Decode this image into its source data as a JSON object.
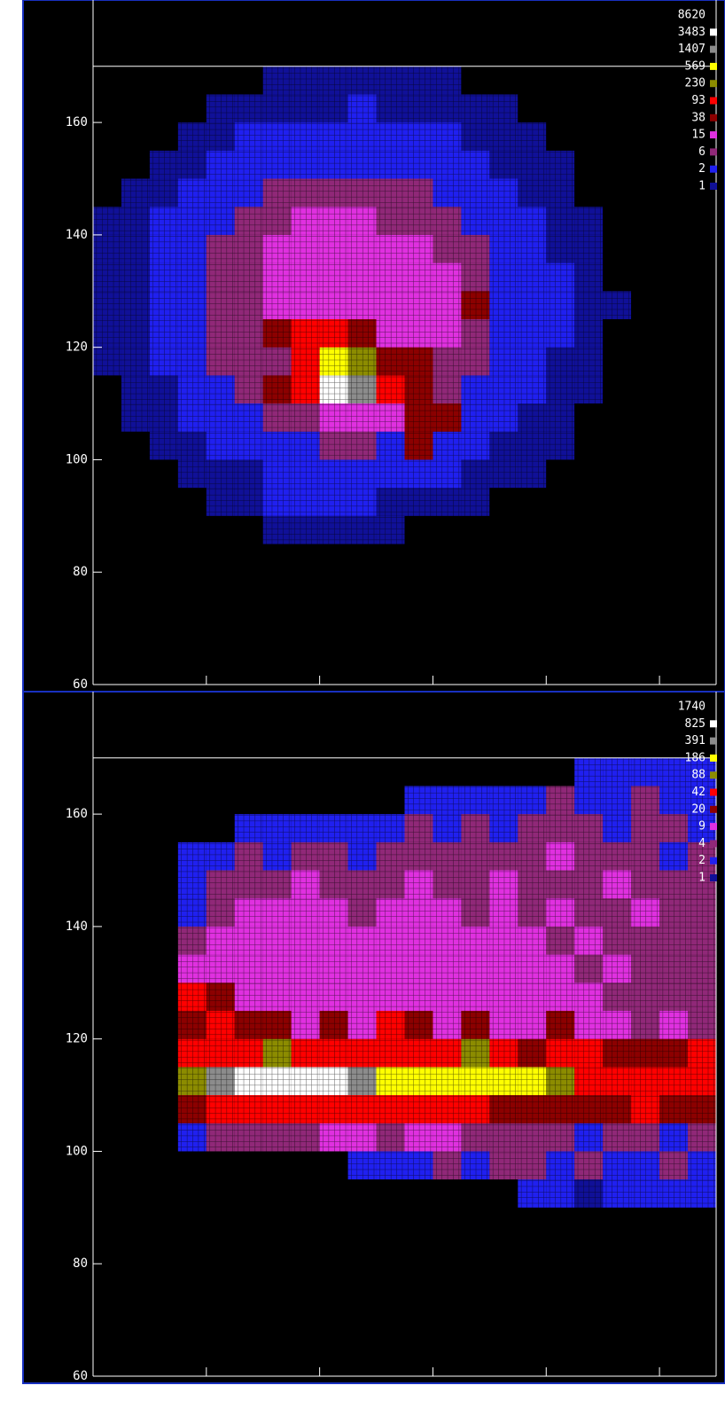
{
  "chart_data": [
    {
      "type": "heatmap",
      "xlim": [
        60,
        170
      ],
      "ylim": [
        60,
        181
      ],
      "xticks": [
        60,
        80,
        100,
        120,
        140,
        160
      ],
      "yticks": [
        60,
        80,
        100,
        120,
        140,
        160
      ],
      "reference_line": 170,
      "xbins": [
        60,
        65,
        70,
        75,
        80,
        85,
        90,
        95,
        100,
        105,
        110,
        115,
        120,
        125,
        130,
        135,
        140,
        145,
        150,
        155,
        160,
        165,
        170
      ],
      "ybins": [
        85,
        90,
        95,
        100,
        105,
        110,
        115,
        120,
        125,
        130,
        135,
        140,
        145,
        150,
        155,
        160,
        165,
        170
      ],
      "levels": [
        8620,
        3483,
        1407,
        569,
        230,
        93,
        38,
        15,
        6,
        2,
        1
      ],
      "colors": [
        "#ffffff",
        "#8c8c8c",
        "#ffff00",
        "#8c8c00",
        "#ff0000",
        "#8c0000",
        "#e030e0",
        "#902878",
        "#2020f0",
        "#101098"
      ],
      "z": [
        [
          0,
          0,
          0,
          0,
          0,
          0,
          1,
          1,
          1,
          1,
          1,
          0,
          0,
          0,
          0,
          0,
          0,
          0,
          0,
          0,
          0,
          0
        ],
        [
          0,
          0,
          0,
          0,
          1,
          1,
          2,
          2,
          2,
          2,
          1,
          1,
          1,
          1,
          0,
          0,
          0,
          0,
          0,
          0,
          0,
          0
        ],
        [
          0,
          0,
          0,
          1,
          1,
          1,
          3,
          3,
          2,
          3,
          3,
          3,
          3,
          1,
          1,
          1,
          0,
          0,
          0,
          0,
          0,
          0
        ],
        [
          0,
          0,
          1,
          1,
          3,
          3,
          3,
          3,
          8,
          8,
          3,
          40,
          3,
          3,
          1,
          1,
          1,
          0,
          0,
          0,
          0,
          0
        ],
        [
          0,
          1,
          1,
          3,
          3,
          3,
          8,
          8,
          20,
          15,
          30,
          60,
          45,
          3,
          3,
          1,
          1,
          0,
          0,
          0,
          0,
          0
        ],
        [
          0,
          1,
          1,
          3,
          3,
          8,
          40,
          200,
          8620,
          1500,
          100,
          70,
          8,
          3,
          3,
          3,
          1,
          1,
          0,
          0,
          0,
          0
        ],
        [
          1,
          1,
          3,
          3,
          8,
          8,
          8,
          100,
          600,
          250,
          60,
          40,
          8,
          8,
          3,
          3,
          1,
          1,
          0,
          0,
          0,
          0
        ],
        [
          1,
          1,
          3,
          3,
          8,
          8,
          50,
          100,
          120,
          60,
          18,
          18,
          18,
          8,
          3,
          3,
          3,
          1,
          0,
          0,
          0,
          0
        ],
        [
          1,
          1,
          3,
          3,
          8,
          8,
          18,
          18,
          18,
          18,
          18,
          18,
          18,
          40,
          3,
          3,
          3,
          1,
          1,
          0,
          0,
          0
        ],
        [
          1,
          1,
          3,
          3,
          8,
          8,
          18,
          18,
          18,
          18,
          18,
          18,
          18,
          8,
          3,
          3,
          3,
          1,
          0,
          0,
          0,
          0
        ],
        [
          1,
          1,
          3,
          3,
          8,
          8,
          18,
          18,
          18,
          18,
          18,
          18,
          8,
          8,
          3,
          3,
          1,
          1,
          0,
          0,
          0,
          0
        ],
        [
          1,
          1,
          3,
          3,
          3,
          8,
          8,
          18,
          18,
          18,
          8,
          8,
          8,
          3,
          3,
          3,
          1,
          1,
          0,
          0,
          0,
          0
        ],
        [
          0,
          1,
          1,
          3,
          3,
          3,
          8,
          8,
          8,
          8,
          8,
          8,
          3,
          3,
          3,
          1,
          1,
          0,
          0,
          0,
          0,
          0
        ],
        [
          0,
          0,
          1,
          1,
          3,
          3,
          3,
          3,
          3,
          3,
          3,
          3,
          3,
          3,
          1,
          1,
          1,
          0,
          0,
          0,
          0,
          0
        ],
        [
          0,
          0,
          0,
          1,
          1,
          3,
          3,
          3,
          3,
          3,
          3,
          3,
          3,
          1,
          1,
          1,
          0,
          0,
          0,
          0,
          0,
          0
        ],
        [
          0,
          0,
          0,
          0,
          1,
          1,
          1,
          1,
          1,
          2,
          1,
          1,
          1,
          1,
          1,
          0,
          0,
          0,
          0,
          0,
          0,
          0
        ],
        [
          0,
          0,
          0,
          0,
          0,
          0,
          1,
          1,
          1,
          1,
          1,
          1,
          1,
          0,
          0,
          0,
          0,
          0,
          0,
          0,
          0,
          0
        ]
      ]
    },
    {
      "type": "heatmap",
      "xlim": [
        60,
        170
      ],
      "ylim": [
        60,
        181
      ],
      "xticks": [
        60,
        80,
        100,
        120,
        140,
        160
      ],
      "yticks": [
        60,
        80,
        100,
        120,
        140,
        160
      ],
      "reference_line": 170,
      "xbins": [
        60,
        65,
        70,
        75,
        80,
        85,
        90,
        95,
        100,
        105,
        110,
        115,
        120,
        125,
        130,
        135,
        140,
        145,
        150,
        155,
        160,
        165,
        170
      ],
      "ybins": [
        85,
        90,
        95,
        100,
        105,
        110,
        115,
        120,
        125,
        130,
        135,
        140,
        145,
        150,
        155,
        160,
        165,
        170
      ],
      "levels": [
        1740,
        825,
        391,
        186,
        88,
        42,
        20,
        9,
        4,
        2,
        1
      ],
      "colors": [
        "#ffffff",
        "#8c8c8c",
        "#ffff00",
        "#8c8c00",
        "#ff0000",
        "#8c0000",
        "#e030e0",
        "#902878",
        "#2020f0",
        "#101098"
      ],
      "z": [
        [
          0,
          0,
          0,
          0,
          0,
          0,
          0,
          0,
          0,
          0,
          0,
          0,
          0,
          0,
          0,
          0,
          0,
          0,
          0,
          0,
          0,
          0
        ],
        [
          0,
          0,
          0,
          0,
          0,
          0,
          0,
          0,
          0,
          0,
          0,
          0,
          0,
          0,
          0,
          2,
          2,
          1,
          2,
          2,
          2,
          2
        ],
        [
          0,
          0,
          0,
          0,
          0,
          0,
          0,
          0,
          0,
          2,
          2,
          2,
          4,
          2,
          4,
          4,
          2,
          4,
          2,
          2,
          4,
          2
        ],
        [
          0,
          0,
          0,
          2,
          4,
          4,
          4,
          4,
          9,
          9,
          4,
          9,
          9,
          4,
          4,
          4,
          4,
          2,
          4,
          4,
          2,
          4
        ],
        [
          0,
          0,
          0,
          20,
          45,
          45,
          50,
          50,
          45,
          45,
          50,
          45,
          50,
          45,
          20,
          20,
          20,
          20,
          25,
          45,
          20,
          20
        ],
        [
          0,
          0,
          0,
          100,
          400,
          900,
          900,
          1740,
          900,
          500,
          200,
          250,
          200,
          200,
          190,
          200,
          100,
          50,
          50,
          60,
          45,
          50
        ],
        [
          0,
          0,
          0,
          45,
          50,
          45,
          90,
          45,
          45,
          45,
          60,
          45,
          45,
          100,
          45,
          20,
          45,
          45,
          20,
          20,
          20,
          45
        ],
        [
          0,
          0,
          0,
          20,
          45,
          20,
          20,
          10,
          20,
          10,
          45,
          20,
          10,
          20,
          10,
          10,
          20,
          10,
          10,
          5,
          10,
          5
        ],
        [
          0,
          0,
          0,
          45,
          20,
          10,
          10,
          10,
          10,
          10,
          10,
          10,
          10,
          10,
          10,
          10,
          10,
          10,
          5,
          5,
          5,
          5
        ],
        [
          0,
          0,
          0,
          10,
          10,
          10,
          10,
          10,
          10,
          10,
          10,
          10,
          10,
          10,
          10,
          10,
          10,
          5,
          10,
          5,
          5,
          5
        ],
        [
          0,
          0,
          0,
          5,
          10,
          10,
          10,
          10,
          10,
          10,
          10,
          10,
          10,
          10,
          10,
          10,
          5,
          10,
          5,
          5,
          5,
          5
        ],
        [
          0,
          0,
          0,
          2,
          5,
          10,
          10,
          10,
          10,
          5,
          10,
          10,
          10,
          5,
          10,
          5,
          10,
          5,
          5,
          10,
          5,
          5
        ],
        [
          0,
          0,
          0,
          2,
          5,
          5,
          5,
          10,
          5,
          5,
          5,
          10,
          5,
          5,
          10,
          5,
          5,
          5,
          10,
          5,
          5,
          5
        ],
        [
          0,
          0,
          0,
          2,
          2,
          5,
          2,
          5,
          5,
          2,
          5,
          5,
          5,
          5,
          5,
          5,
          10,
          5,
          5,
          5,
          2,
          5
        ],
        [
          0,
          0,
          0,
          0,
          0,
          2,
          2,
          2,
          2,
          2,
          2,
          5,
          2,
          5,
          2,
          5,
          5,
          5,
          2,
          5,
          5,
          2
        ],
        [
          0,
          0,
          0,
          0,
          0,
          0,
          0,
          0,
          0,
          0,
          0,
          2,
          2,
          2,
          2,
          2,
          5,
          2,
          2,
          5,
          2,
          2
        ],
        [
          0,
          0,
          0,
          0,
          0,
          0,
          0,
          0,
          0,
          0,
          0,
          0,
          0,
          0,
          0,
          0,
          0,
          2,
          2,
          2,
          2,
          2
        ]
      ]
    }
  ]
}
